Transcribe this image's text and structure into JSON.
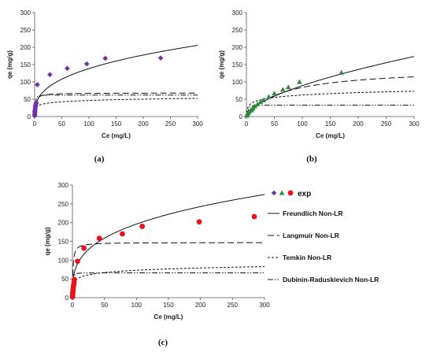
{
  "colors": {
    "panel_a": "#7030a0",
    "panel_b": "#2e8b3a",
    "panel_c": "#e8141c",
    "model_line": "#111111"
  },
  "legend": {
    "exp_label": "exp",
    "entries": [
      {
        "label": "Freundlich Non-LR",
        "dash": "solid"
      },
      {
        "label": "Langmuir Non-LR",
        "dash": "long-dash"
      },
      {
        "label": "Temkin Non-LR",
        "dash": "short-dash"
      },
      {
        "label": "Dubinin-Raduskievich Non-LR",
        "dash": "dash-dot-dot"
      }
    ]
  },
  "chart_data": [
    {
      "panel_label": "(a)",
      "type": "scatter",
      "marker": "diamond",
      "xlabel": "Ce (mg/L)",
      "ylabel": "qe (mg/g)",
      "xlim": [
        0,
        300
      ],
      "ylim": [
        0,
        300
      ],
      "xticks": [
        0,
        50,
        100,
        150,
        200,
        250,
        300
      ],
      "yticks": [
        0,
        50,
        100,
        150,
        200,
        250,
        300
      ],
      "exp": {
        "x": [
          0.1,
          0.2,
          0.3,
          0.4,
          0.5,
          0.7,
          0.9,
          1.2,
          1.5,
          2,
          2.5,
          3,
          5,
          28,
          60,
          96,
          130,
          232
        ],
        "y": [
          2,
          5,
          8,
          12,
          15,
          18,
          22,
          26,
          30,
          33,
          37,
          40,
          92,
          121,
          139,
          152,
          168,
          169
        ]
      },
      "models": [
        {
          "name": "Freundlich Non-LR",
          "kind": "freundlich",
          "params": {
            "k": 26.5,
            "n": 0.359
          }
        },
        {
          "name": "Langmuir Non-LR",
          "kind": "langmuir",
          "params": {
            "qm": 68,
            "kl": 0.6
          }
        },
        {
          "name": "Temkin Non-LR",
          "kind": "temkin",
          "params": {
            "a": 46,
            "b": 5.5
          }
        },
        {
          "name": "Dubinin-Raduskievich Non-LR",
          "kind": "dr",
          "params": {
            "qm": 62,
            "beta": 2.5
          }
        }
      ]
    },
    {
      "panel_label": "(b)",
      "type": "scatter",
      "marker": "triangle",
      "xlabel": "Ce (mg/L)",
      "ylabel": "qe (mg/g)",
      "xlim": [
        0,
        300
      ],
      "ylim": [
        0,
        300
      ],
      "xticks": [
        0,
        50,
        100,
        150,
        200,
        250,
        300
      ],
      "yticks": [
        0,
        50,
        100,
        150,
        200,
        250,
        300
      ],
      "exp": {
        "x": [
          0.5,
          1,
          2,
          3,
          5,
          8,
          10,
          12,
          15,
          20,
          25,
          30,
          40,
          50,
          65,
          75,
          95,
          170
        ],
        "y": [
          3,
          5,
          8,
          11,
          14,
          18,
          21,
          25,
          30,
          36,
          42,
          47,
          57,
          67,
          78,
          85,
          100,
          127
        ]
      },
      "models": [
        {
          "name": "Freundlich Non-LR",
          "kind": "freundlich",
          "params": {
            "k": 5.5,
            "n": 0.605
          }
        },
        {
          "name": "Langmuir Non-LR",
          "kind": "langmuir",
          "params": {
            "qm": 140,
            "kl": 0.015
          }
        },
        {
          "name": "Temkin Non-LR",
          "kind": "temkin",
          "params": {
            "a": 5,
            "b": 10
          }
        },
        {
          "name": "Dubinin-Raduskievich Non-LR",
          "kind": "dr",
          "params": {
            "qm": 33,
            "beta": 8
          }
        }
      ]
    },
    {
      "panel_label": "(c)",
      "type": "scatter",
      "marker": "circle",
      "xlabel": "Ce (mg/L)",
      "ylabel": "qe (mg/g)",
      "xlim": [
        0,
        300
      ],
      "ylim": [
        0,
        300
      ],
      "xticks": [
        0,
        50,
        100,
        150,
        200,
        250,
        300
      ],
      "yticks": [
        0,
        50,
        100,
        150,
        200,
        250,
        300
      ],
      "exp": {
        "x": [
          0.1,
          0.2,
          0.3,
          0.5,
          0.7,
          0.9,
          1.2,
          1.5,
          2,
          2.5,
          3,
          8,
          18,
          42,
          78,
          109,
          198,
          284
        ],
        "y": [
          2,
          5,
          8,
          12,
          16,
          20,
          25,
          30,
          35,
          40,
          48,
          97,
          132,
          158,
          170,
          190,
          202,
          216
        ]
      },
      "models": [
        {
          "name": "Freundlich Non-LR",
          "kind": "freundlich",
          "params": {
            "k": 47.7,
            "n": 0.307
          }
        },
        {
          "name": "Langmuir Non-LR",
          "kind": "langmuir",
          "params": {
            "qm": 147,
            "kl": 1.1
          }
        },
        {
          "name": "Temkin Non-LR",
          "kind": "temkin",
          "params": {
            "a": 40,
            "b": 8.8
          }
        },
        {
          "name": "Dubinin-Raduskievich Non-LR",
          "kind": "dr",
          "params": {
            "qm": 66,
            "beta": 1.5
          }
        }
      ]
    }
  ]
}
